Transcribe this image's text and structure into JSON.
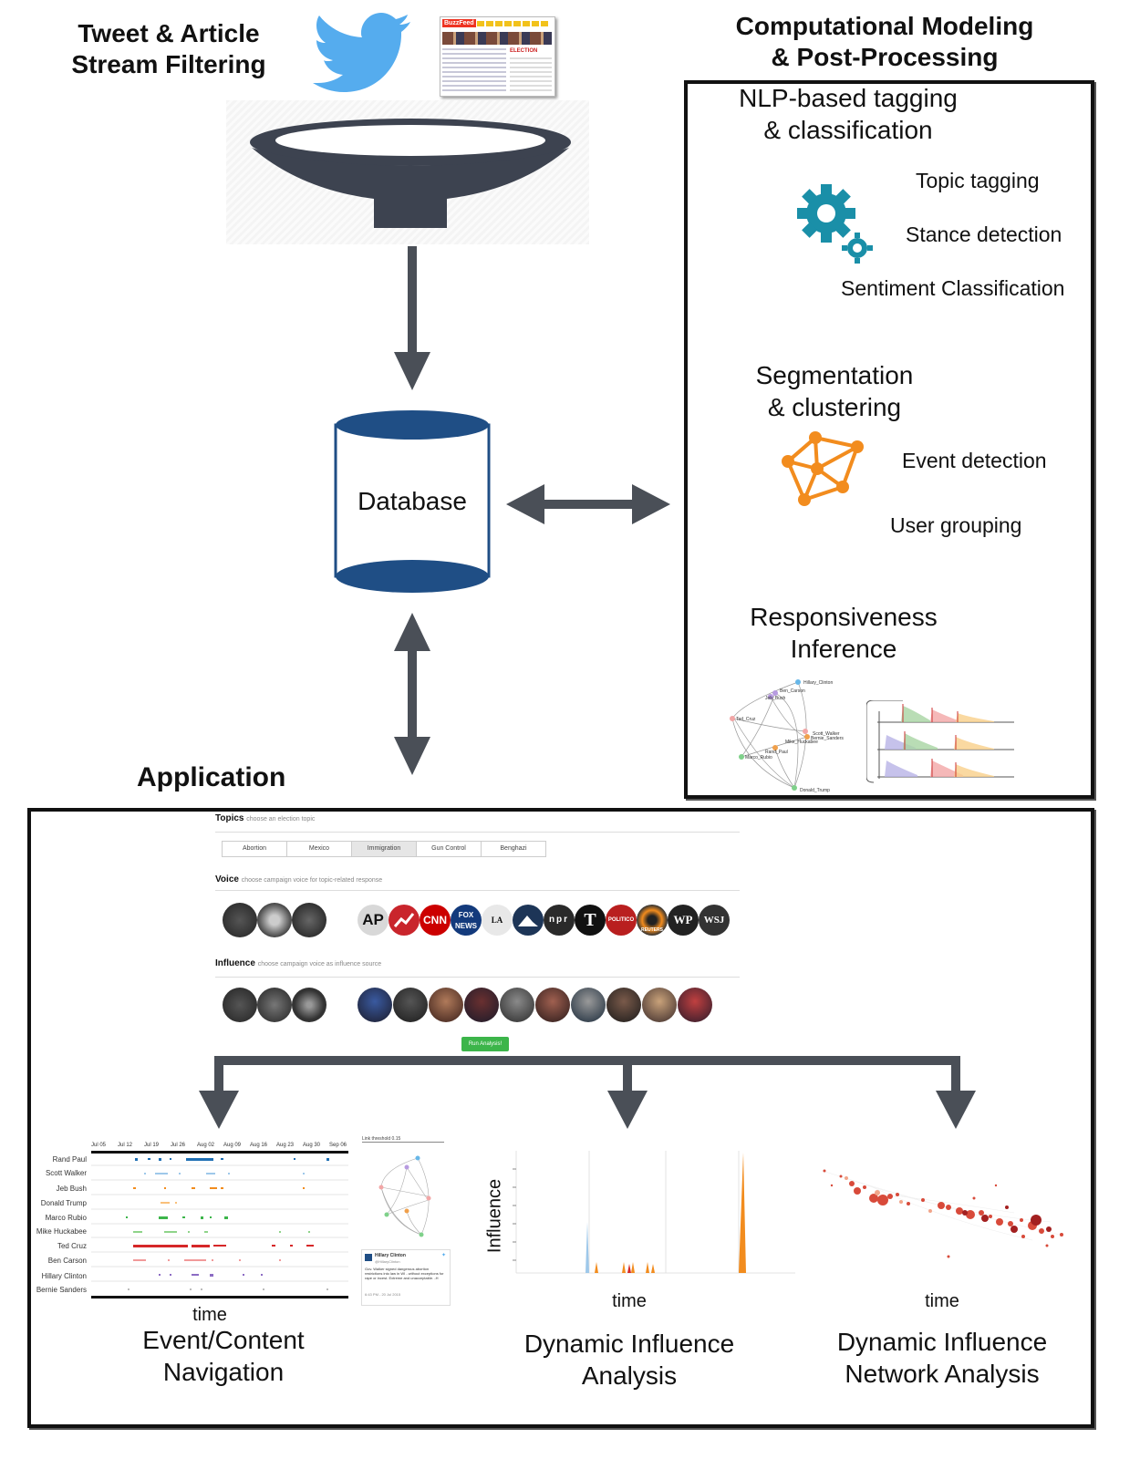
{
  "stream": {
    "title_line1": "Tweet & Article",
    "title_line2": "Stream Filtering",
    "buzzfeed_label": "BuzzFeed",
    "election_label": "ELECTION"
  },
  "database": {
    "label": "Database"
  },
  "modeling": {
    "title_line1": "Computational Modeling",
    "title_line2": "& Post-Processing",
    "nlp_title_line1": "NLP-based tagging",
    "nlp_title_line2": "& classification",
    "nlp_items": [
      "Topic tagging",
      "Stance detection",
      "Sentiment Classification"
    ],
    "seg_title_line1": "Segmentation",
    "seg_title_line2": "& clustering",
    "seg_items": [
      "Event detection",
      "User grouping"
    ],
    "resp_title_line1": "Responsiveness",
    "resp_title_line2": "Inference",
    "graph_nodes": [
      "Hillary_Clinton",
      "Ben_Carson",
      "Jeb_Bush",
      "Ted_Cruz",
      "Scott_Walker",
      "Bernie_Sanders",
      "Mike_Huckabee",
      "Rand_Paul",
      "Marco_Rubio",
      "Donald_Trump"
    ]
  },
  "application": {
    "title": "Application",
    "topics_heading": "Topics",
    "topics_hint": "choose an election topic",
    "topics": [
      "Abortion",
      "Mexico",
      "Immigration",
      "Gun Control",
      "Benghazi"
    ],
    "active_topic": "Immigration",
    "voice_heading": "Voice",
    "voice_hint": "choose campaign voice for topic-related response",
    "media_logos": [
      "AP",
      "",
      "CNN",
      "FOX NEWS",
      "LA Times",
      "",
      "npr",
      "T",
      "POLITICO",
      "REUTERS",
      "WP",
      "WSJ"
    ],
    "influence_heading": "Influence",
    "influence_hint": "choose campaign voice as influence source",
    "run_button": "Run Analysis!"
  },
  "panels": {
    "event_nav": {
      "caption_line1": "Event/Content",
      "caption_line2": "Navigation",
      "axis_label": "time",
      "dates": [
        "Jul 05",
        "Jul 12",
        "Jul 19",
        "Jul 26",
        "Aug 02",
        "Aug 09",
        "Aug 16",
        "Aug 23",
        "Aug 30",
        "Sep 06"
      ],
      "candidates": [
        "Rand Paul",
        "Scott Walker",
        "Jeb Bush",
        "Donald Trump",
        "Marco Rubio",
        "Mike Huckabee",
        "Ted Cruz",
        "Ben Carson",
        "Hillary Clinton",
        "Bernie Sanders"
      ],
      "link_threshold": "Link threshold 0.15",
      "tweet_author": "Hillary Clinton",
      "tweet_handle": "@HillaryClinton",
      "tweet_text": "Gov. Walker signed dangerous abortion restrictions into law in WI - without exceptions for rape or incest. Extreme and unacceptable. -H",
      "tweet_time": "6:43 PM - 20 Jul 2015"
    },
    "influence": {
      "caption_line1": "Dynamic Influence",
      "caption_line2": "Analysis",
      "y_label": "Influence",
      "x_label": "time"
    },
    "network": {
      "caption_line1": "Dynamic Influence",
      "caption_line2": "Network Analysis",
      "x_label": "time"
    }
  },
  "colors": {
    "arrow": "#4a4f57",
    "funnel": "#3d4350",
    "db_blue": "#1f4e85",
    "twitter": "#55acee",
    "gear": "#1a8fa8",
    "cluster": "#f28c1e",
    "run_button": "#3cb54a"
  }
}
